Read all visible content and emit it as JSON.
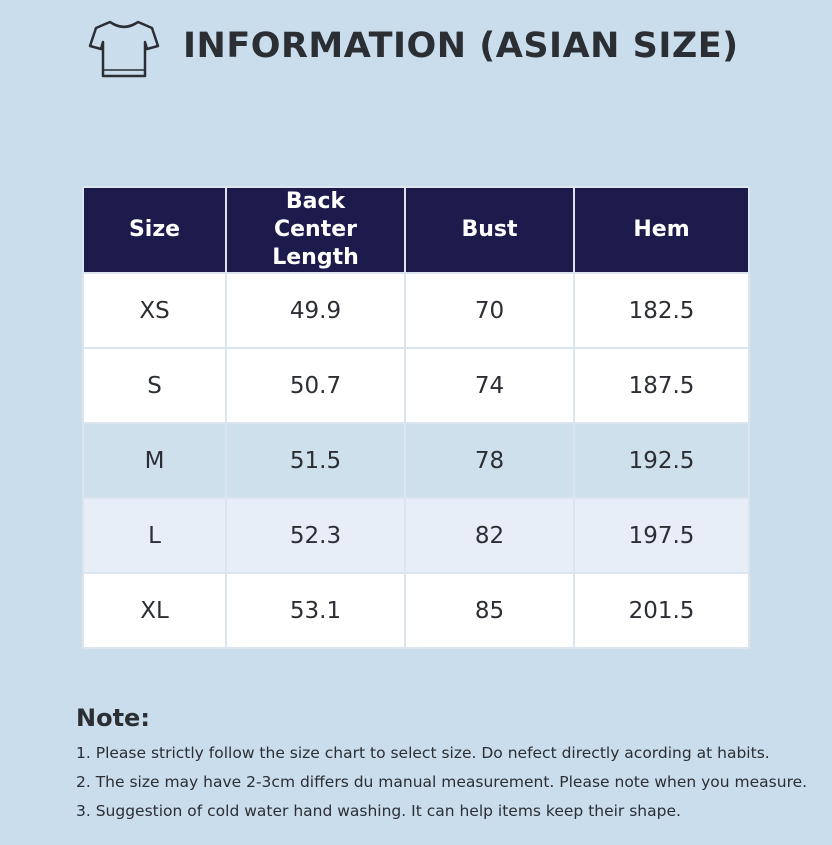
{
  "header": {
    "title": "INFORMATION (ASIAN SIZE)"
  },
  "table": {
    "columns": [
      "Size",
      "Back Center Length",
      "Bust",
      "Hem"
    ],
    "rows": [
      [
        "XS",
        "49.9",
        "70",
        "182.5"
      ],
      [
        "S",
        "50.7",
        "74",
        "187.5"
      ],
      [
        "M",
        "51.5",
        "78",
        "192.5"
      ],
      [
        "L",
        "52.3",
        "82",
        "197.5"
      ],
      [
        "XL",
        "53.1",
        "85",
        "201.5"
      ]
    ]
  },
  "note": {
    "title": "Note:",
    "items": [
      "1. Please strictly follow the size chart to select size. Do nefect directly acording at habits.",
      "2. The size may have 2-3cm differs du manual measurement. Please note when you measure.",
      "3. Suggestion of cold water hand washing. It can help items keep their shape."
    ]
  }
}
